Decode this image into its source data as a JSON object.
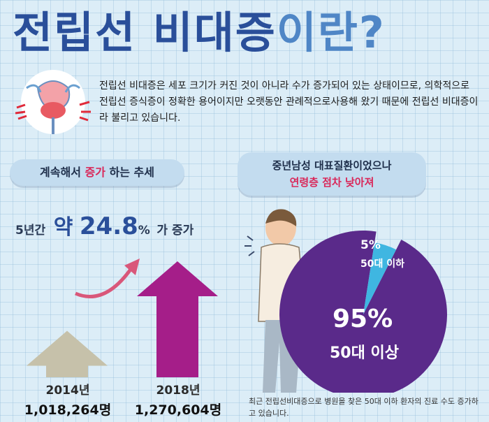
{
  "header": {
    "title_part1": "전립선 비대증",
    "title_part2": "이란?"
  },
  "intro": {
    "text": "전립선 비대증은 세포 크기가 커진 것이 아니라 수가 증가되어 있는 상태이므로, 의학적으로 전립선 증식증이 정확한 용어이지만 오랫동안 관례적으로사용해  왔기 때문에 전립선 비대증이라 불리고 있습니다."
  },
  "trend": {
    "pill_prefix": "계속해서 ",
    "pill_highlight": "증가",
    "pill_suffix": " 하는 추세",
    "period": "5년간",
    "about": "약",
    "rate": "24.8",
    "percent": "%",
    "suffix": "가 증가"
  },
  "age_section": {
    "pill_line1": "중년남성 대표질환이었으나",
    "pill_line2": "연령층 점차 낮아져",
    "footnote": "최근 전립선비대증으로 병원을 찾은 50대 이하 환자의 진료 수도 증가하고 있습니다."
  },
  "colors": {
    "title_dark": "#2a4f9a",
    "title_light": "#4f86c6",
    "arrow_2014": "#c6c1aa",
    "arrow_2018": "#a51e89",
    "pie_main": "#5a2a8a",
    "pie_small": "#3fb6e1",
    "curve": "#d9577a"
  },
  "chart_data": [
    {
      "type": "bar",
      "categories": [
        "2014년",
        "2018년"
      ],
      "values": [
        1018264,
        1270604
      ],
      "value_labels": [
        "1,018,264명",
        "1,270,604명"
      ]
    },
    {
      "type": "pie",
      "slices": [
        {
          "label": "50대 이상",
          "value": 95,
          "value_label": "95%"
        },
        {
          "label": "50대 이하",
          "value": 5,
          "value_label": "5%"
        }
      ]
    }
  ]
}
